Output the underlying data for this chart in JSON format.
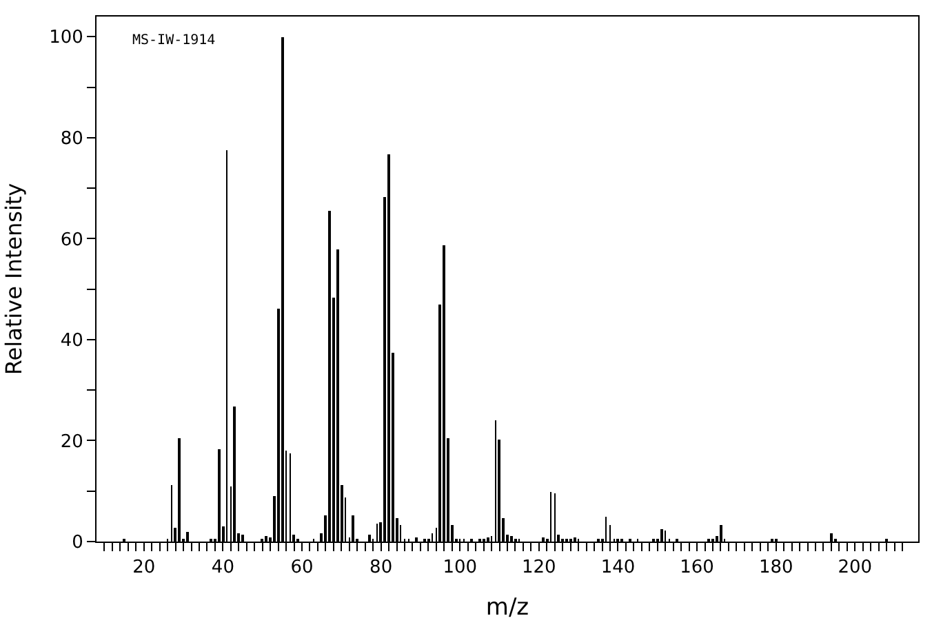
{
  "chart_data": {
    "type": "bar",
    "xlabel": "m/z",
    "ylabel": "Relative Intensity",
    "annotations": [
      "MS-IW-1914"
    ],
    "x": [
      15,
      26,
      27,
      28,
      29,
      30,
      31,
      37,
      38,
      39,
      40,
      41,
      42,
      43,
      44,
      45,
      50,
      51,
      52,
      53,
      54,
      55,
      56,
      57,
      58,
      59,
      63,
      65,
      66,
      67,
      68,
      69,
      70,
      71,
      72,
      73,
      74,
      77,
      78,
      79,
      80,
      81,
      82,
      83,
      84,
      85,
      86,
      87,
      89,
      91,
      92,
      93,
      94,
      95,
      96,
      97,
      98,
      99,
      100,
      101,
      103,
      105,
      106,
      107,
      108,
      109,
      110,
      111,
      112,
      113,
      114,
      115,
      121,
      122,
      123,
      124,
      125,
      126,
      127,
      128,
      129,
      130,
      135,
      136,
      137,
      138,
      139,
      140,
      141,
      143,
      145,
      149,
      150,
      151,
      152,
      153,
      155,
      163,
      164,
      165,
      166,
      167,
      179,
      180,
      194,
      195,
      208
    ],
    "values": [
      0.4,
      0.6,
      11.3,
      2.6,
      20.4,
      0.6,
      2.0,
      0.4,
      0.4,
      18.2,
      3.1,
      77.6,
      11.0,
      26.7,
      1.7,
      1.5,
      0.4,
      1.2,
      0.9,
      9.1,
      46.1,
      100,
      17.9,
      17.4,
      1.5,
      0.4,
      0.4,
      1.7,
      5.3,
      65.5,
      48.2,
      57.8,
      11.3,
      8.6,
      0.9,
      5.3,
      0.4,
      1.5,
      0.6,
      3.6,
      3.8,
      68.2,
      76.7,
      37.5,
      4.6,
      3.3,
      0.6,
      0.6,
      0.9,
      0.5,
      0.3,
      1.7,
      2.6,
      46.9,
      58.6,
      20.6,
      3.4,
      0.6,
      0.6,
      0.3,
      0.3,
      0.3,
      0.3,
      0.9,
      1.2,
      24.1,
      20.3,
      4.7,
      1.5,
      1.0,
      0.3,
      0.3,
      0.8,
      0.5,
      9.9,
      9.6,
      1.4,
      0.5,
      0.5,
      0.3,
      0.8,
      0.3,
      0.5,
      0.3,
      4.9,
      3.3,
      0.3,
      0.3,
      0.3,
      0.3,
      0.5,
      0.5,
      0.3,
      2.5,
      2.2,
      0.3,
      0.3,
      0.3,
      0.3,
      1.1,
      3.3,
      0.3,
      0.3,
      0.3,
      1.6,
      0.3,
      0.3
    ],
    "color": "#000000",
    "xlim": [
      8,
      216
    ],
    "xticks": [
      {
        "value": 10,
        "label": null
      },
      {
        "value": 12,
        "label": null
      },
      {
        "value": 14,
        "label": null
      },
      {
        "value": 16,
        "label": null
      },
      {
        "value": 18,
        "label": null
      },
      20,
      {
        "value": 22,
        "label": null
      },
      {
        "value": 24,
        "label": null
      },
      {
        "value": 26,
        "label": null
      },
      {
        "value": 28,
        "label": null
      },
      {
        "value": 30,
        "label": null
      },
      {
        "value": 32,
        "label": null
      },
      {
        "value": 34,
        "label": null
      },
      {
        "value": 36,
        "label": null
      },
      {
        "value": 38,
        "label": null
      },
      40,
      {
        "value": 42,
        "label": null
      },
      {
        "value": 44,
        "label": null
      },
      {
        "value": 46,
        "label": null
      },
      {
        "value": 48,
        "label": null
      },
      {
        "value": 50,
        "label": null
      },
      {
        "value": 52,
        "label": null
      },
      {
        "value": 54,
        "label": null
      },
      {
        "value": 56,
        "label": null
      },
      {
        "value": 58,
        "label": null
      },
      60,
      {
        "value": 62,
        "label": null
      },
      {
        "value": 64,
        "label": null
      },
      {
        "value": 66,
        "label": null
      },
      {
        "value": 68,
        "label": null
      },
      {
        "value": 70,
        "label": null
      },
      {
        "value": 72,
        "label": null
      },
      {
        "value": 74,
        "label": null
      },
      {
        "value": 76,
        "label": null
      },
      {
        "value": 78,
        "label": null
      },
      80,
      {
        "value": 82,
        "label": null
      },
      {
        "value": 84,
        "label": null
      },
      {
        "value": 86,
        "label": null
      },
      {
        "value": 88,
        "label": null
      },
      {
        "value": 90,
        "label": null
      },
      {
        "value": 92,
        "label": null
      },
      {
        "value": 94,
        "label": null
      },
      {
        "value": 96,
        "label": null
      },
      {
        "value": 98,
        "label": null
      },
      100,
      {
        "value": 102,
        "label": null
      },
      {
        "value": 104,
        "label": null
      },
      {
        "value": 106,
        "label": null
      },
      {
        "value": 108,
        "label": null
      },
      {
        "value": 110,
        "label": null
      },
      {
        "value": 112,
        "label": null
      },
      {
        "value": 114,
        "label": null
      },
      {
        "value": 116,
        "label": null
      },
      {
        "value": 118,
        "label": null
      },
      120,
      {
        "value": 122,
        "label": null
      },
      {
        "value": 124,
        "label": null
      },
      {
        "value": 126,
        "label": null
      },
      {
        "value": 128,
        "label": null
      },
      {
        "value": 130,
        "label": null
      },
      {
        "value": 132,
        "label": null
      },
      {
        "value": 134,
        "label": null
      },
      {
        "value": 136,
        "label": null
      },
      {
        "value": 138,
        "label": null
      },
      140,
      {
        "value": 142,
        "label": null
      },
      {
        "value": 144,
        "label": null
      },
      {
        "value": 146,
        "label": null
      },
      {
        "value": 148,
        "label": null
      },
      {
        "value": 150,
        "label": null
      },
      {
        "value": 152,
        "label": null
      },
      {
        "value": 154,
        "label": null
      },
      {
        "value": 156,
        "label": null
      },
      {
        "value": 158,
        "label": null
      },
      160,
      {
        "value": 162,
        "label": null
      },
      {
        "value": 164,
        "label": null
      },
      {
        "value": 166,
        "label": null
      },
      {
        "value": 168,
        "label": null
      },
      {
        "value": 170,
        "label": null
      },
      {
        "value": 172,
        "label": null
      },
      {
        "value": 174,
        "label": null
      },
      {
        "value": 176,
        "label": null
      },
      {
        "value": 178,
        "label": null
      },
      180,
      {
        "value": 182,
        "label": null
      },
      {
        "value": 184,
        "label": null
      },
      {
        "value": 186,
        "label": null
      },
      {
        "value": 188,
        "label": null
      },
      {
        "value": 190,
        "label": null
      },
      {
        "value": 192,
        "label": null
      },
      {
        "value": 194,
        "label": null
      },
      {
        "value": 196,
        "label": null
      },
      {
        "value": 198,
        "label": null
      },
      200,
      {
        "value": 202,
        "label": null
      },
      {
        "value": 204,
        "label": null
      },
      {
        "value": 206,
        "label": null
      },
      {
        "value": 208,
        "label": null
      },
      {
        "value": 210,
        "label": null
      },
      {
        "value": 212,
        "label": null
      }
    ],
    "ylim": [
      0,
      104
    ],
    "yticks": [
      0,
      {
        "value": 10,
        "label": null
      },
      20,
      {
        "value": 30,
        "label": null
      },
      40,
      {
        "value": 50,
        "label": null
      },
      60,
      {
        "value": 70,
        "label": null
      },
      80,
      {
        "value": 90,
        "label": null
      },
      100
    ]
  }
}
